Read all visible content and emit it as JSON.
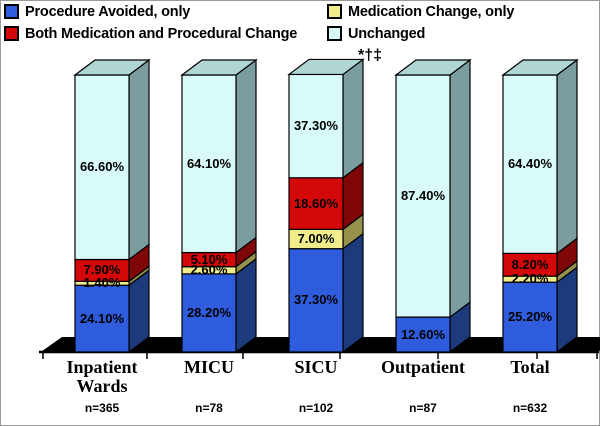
{
  "figure": {
    "background": "#FFFFFF",
    "border_color": "#9A9A9A"
  },
  "legend": {
    "position": "top",
    "items": [
      {
        "label": "Procedure Avoided, only",
        "color": "#2E5CDC"
      },
      {
        "label": "Medication Change, only",
        "color": "#F1ED8B"
      },
      {
        "label": "Both Medication and Procedural Change",
        "color": "#D40808"
      },
      {
        "label": "Unchanged",
        "color": "#D8FAF8"
      }
    ]
  },
  "annotation": {
    "text": "*†‡",
    "attached_to": "SICU"
  },
  "chart_data": {
    "type": "bar",
    "stacked": true,
    "value_format": "percent",
    "ylim": [
      0,
      100
    ],
    "grid": false,
    "legend_position": "top",
    "style": "3d-stacked-column",
    "categories": [
      "Inpatient Wards",
      "MICU",
      "SICU",
      "Outpatient",
      "Total"
    ],
    "category_n_labels": [
      "n=365",
      "n=78",
      "n=102",
      "n=87",
      "n=632"
    ],
    "series": [
      {
        "name": "Procedure Avoided, only",
        "values": [
          24.1,
          28.2,
          37.3,
          12.6,
          25.2
        ],
        "data_labels": [
          "24.10%",
          "28.20%",
          "37.30%",
          "12.60%",
          "25.20%"
        ],
        "colors": {
          "front": "#2E5CDC",
          "side": "#1D3A7D"
        }
      },
      {
        "name": "Medication Change, only",
        "values": [
          1.4,
          2.6,
          7.0,
          0,
          2.2
        ],
        "data_labels": [
          "1.40%",
          "2.60%",
          "7.00%",
          "",
          "2.20%"
        ],
        "colors": {
          "front": "#F1ED8B",
          "side": "#96914C"
        }
      },
      {
        "name": "Both Medication and Procedural Change",
        "values": [
          7.9,
          5.1,
          18.6,
          0,
          8.2
        ],
        "data_labels": [
          "7.90%",
          "5.10%",
          "18.60%",
          "",
          "8.20%"
        ],
        "colors": {
          "front": "#D40808",
          "side": "#800707"
        }
      },
      {
        "name": "Unchanged",
        "values": [
          66.6,
          64.1,
          37.3,
          87.4,
          64.4
        ],
        "data_labels": [
          "66.60%",
          "64.10%",
          "37.30%",
          "87.40%",
          "64.40%"
        ],
        "colors": {
          "front": "#D8FAF8",
          "side": "#7B9DA0",
          "top": "#AFD6D2"
        }
      }
    ]
  }
}
